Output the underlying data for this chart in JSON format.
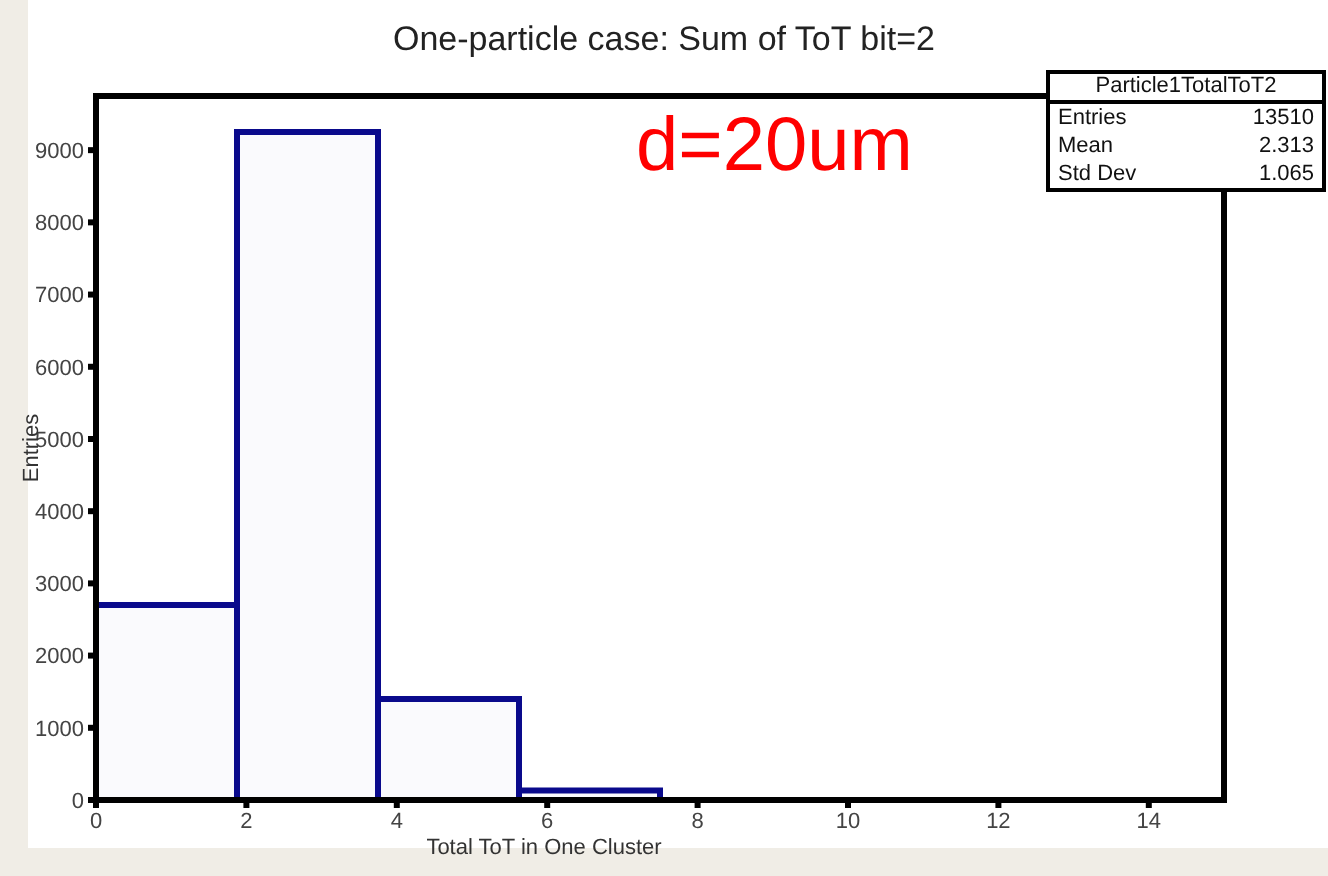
{
  "chart_data": {
    "type": "histogram",
    "title": "One-particle case: Sum of ToT bit=2",
    "xlabel": "Total ToT in One Cluster",
    "ylabel": "Entries",
    "bins": [
      0,
      1.875,
      3.75,
      5.625,
      7.5
    ],
    "values": [
      2700,
      9250,
      1400,
      130
    ],
    "color": "#0a0a8c",
    "xlim": [
      0,
      15
    ],
    "xticks": [
      0,
      2,
      4,
      6,
      8,
      10,
      12,
      14
    ],
    "ylim": [
      0,
      9750
    ],
    "yticks": [
      0,
      1000,
      2000,
      3000,
      4000,
      5000,
      6000,
      7000,
      8000,
      9000
    ],
    "grid": false,
    "annotations": [
      "d=20um",
      "Particle1TotalToT2",
      "Entries 13510",
      "Mean 2.313",
      "Std Dev 1.065"
    ]
  }
}
